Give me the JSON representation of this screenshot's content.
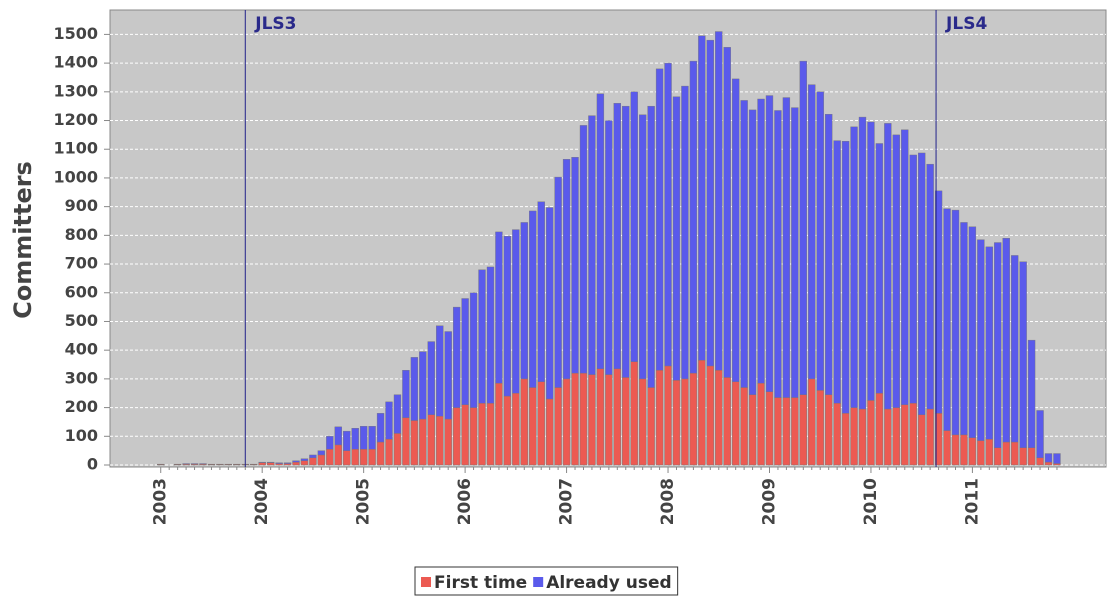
{
  "chart_data": {
    "type": "stacked-bar",
    "y_label": "Committers",
    "categories": [
      "2003",
      null,
      null,
      null,
      null,
      null,
      null,
      null,
      null,
      null,
      null,
      null,
      "2004",
      null,
      null,
      null,
      null,
      null,
      null,
      null,
      null,
      null,
      null,
      null,
      "2005",
      null,
      null,
      null,
      null,
      null,
      null,
      null,
      null,
      null,
      null,
      null,
      "2006",
      null,
      null,
      null,
      null,
      null,
      null,
      null,
      null,
      null,
      null,
      null,
      "2007",
      null,
      null,
      null,
      null,
      null,
      null,
      null,
      null,
      null,
      null,
      null,
      "2008",
      null,
      null,
      null,
      null,
      null,
      null,
      null,
      null,
      null,
      null,
      null,
      "2009",
      null,
      null,
      null,
      null,
      null,
      null,
      null,
      null,
      null,
      null,
      null,
      "2010",
      null,
      null,
      null,
      null,
      null,
      null,
      null,
      null,
      null,
      null,
      null,
      "2011",
      null,
      null,
      null,
      null,
      null,
      null,
      null,
      null,
      null,
      null
    ],
    "series": [
      {
        "name": "First time",
        "color": "#ec5a52",
        "values": [
          2,
          0,
          2,
          3,
          3,
          3,
          2,
          2,
          2,
          2,
          2,
          2,
          8,
          8,
          5,
          5,
          10,
          15,
          25,
          35,
          55,
          70,
          50,
          55,
          55,
          55,
          80,
          90,
          110,
          165,
          155,
          160,
          175,
          170,
          160,
          200,
          210,
          200,
          215,
          215,
          285,
          240,
          250,
          300,
          270,
          290,
          230,
          270,
          300,
          320,
          320,
          315,
          335,
          315,
          335,
          305,
          360,
          300,
          270,
          330,
          345,
          295,
          300,
          320,
          365,
          345,
          330,
          305,
          290,
          270,
          245,
          285,
          255,
          235,
          235,
          235,
          245,
          300,
          260,
          245,
          215,
          180,
          200,
          195,
          225,
          250,
          195,
          200,
          210,
          215,
          175,
          195,
          180,
          120,
          105,
          105,
          95,
          85,
          90,
          60,
          80,
          80,
          60,
          60,
          25,
          10,
          5
        ]
      },
      {
        "name": "Already used",
        "color": "#5a5aeb",
        "values": [
          1,
          0,
          1,
          2,
          2,
          2,
          1,
          1,
          1,
          1,
          1,
          1,
          2,
          2,
          3,
          3,
          5,
          7,
          10,
          15,
          45,
          63,
          68,
          73,
          80,
          80,
          100,
          130,
          135,
          165,
          220,
          235,
          255,
          315,
          305,
          350,
          370,
          400,
          465,
          475,
          527,
          557,
          570,
          545,
          615,
          627,
          667,
          733,
          765,
          752,
          863,
          902,
          958,
          885,
          925,
          945,
          940,
          920,
          980,
          1050,
          1055,
          988,
          1020,
          1087,
          1130,
          1135,
          1180,
          1150,
          1055,
          1000,
          992,
          990,
          1032,
          1000,
          1045,
          1010,
          1162,
          1025,
          1040,
          977,
          915,
          948,
          978,
          1017,
          970,
          870,
          995,
          950,
          958,
          865,
          912,
          853,
          775,
          773,
          783,
          740,
          735,
          700,
          670,
          715,
          710,
          650,
          648,
          375,
          165,
          30,
          35
        ]
      }
    ],
    "annotations": [
      {
        "label": "JLS3",
        "at": 10
      },
      {
        "label": "JLS4",
        "at": 91.7
      }
    ],
    "ylim": [
      0,
      1585
    ],
    "yticks": [
      0,
      100,
      200,
      300,
      400,
      500,
      600,
      700,
      800,
      900,
      1000,
      1100,
      1200,
      1300,
      1400,
      1500
    ],
    "grid": true
  }
}
